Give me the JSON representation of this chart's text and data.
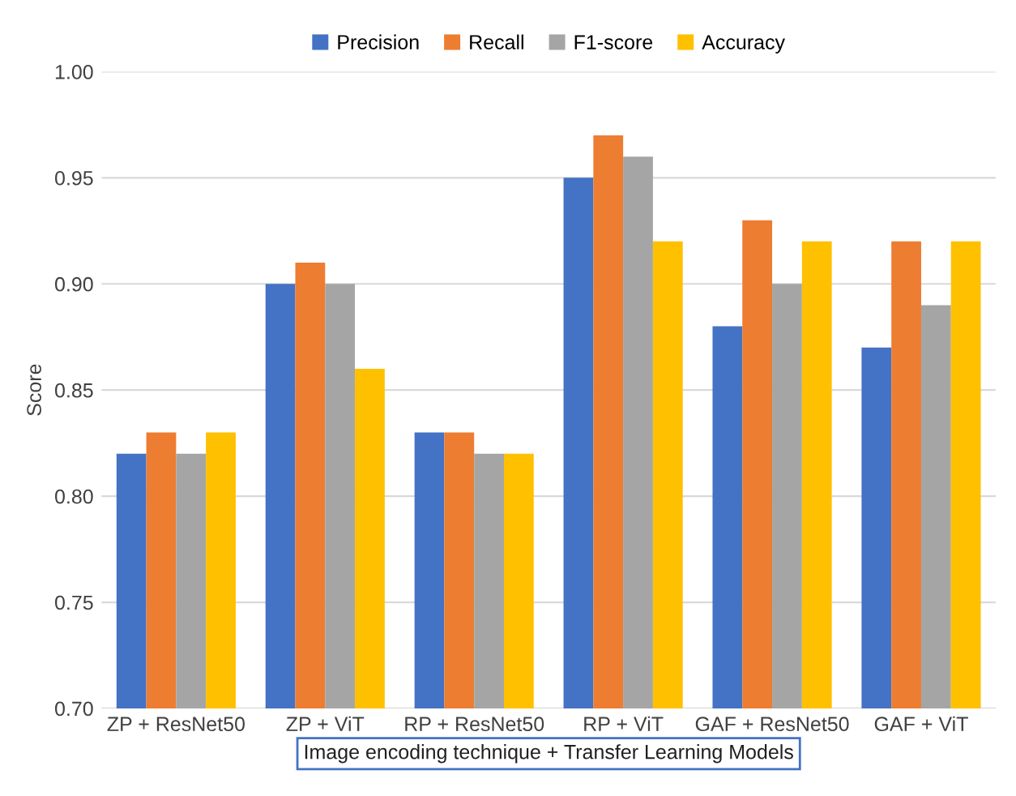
{
  "chart_data": {
    "type": "bar",
    "ylabel": "Score",
    "xlabel": "Image encoding technique + Transfer Learning Models",
    "categories": [
      "ZP + ResNet50",
      "ZP + ViT",
      "RP + ResNet50",
      "RP + ViT",
      "GAF + ResNet50",
      "GAF + ViT"
    ],
    "series": [
      {
        "name": "Precision",
        "color": "#4472c4",
        "values": [
          0.82,
          0.9,
          0.83,
          0.95,
          0.88,
          0.87
        ]
      },
      {
        "name": "Recall",
        "color": "#ed7d31",
        "values": [
          0.83,
          0.91,
          0.83,
          0.97,
          0.93,
          0.92
        ]
      },
      {
        "name": "F1-score",
        "color": "#a5a5a5",
        "values": [
          0.82,
          0.9,
          0.82,
          0.96,
          0.9,
          0.89
        ]
      },
      {
        "name": "Accuracy",
        "color": "#ffc000",
        "values": [
          0.83,
          0.86,
          0.82,
          0.92,
          0.92,
          0.92
        ]
      }
    ],
    "ylim": [
      0.7,
      1.0
    ],
    "yticks": [
      {
        "value": 0.7,
        "label": "0.70"
      },
      {
        "value": 0.75,
        "label": "0.75"
      },
      {
        "value": 0.8,
        "label": "0.80"
      },
      {
        "value": 0.85,
        "label": "0.85"
      },
      {
        "value": 0.9,
        "label": "0.90"
      },
      {
        "value": 0.95,
        "label": "0.95"
      },
      {
        "value": 1.0,
        "label": "1.00"
      }
    ],
    "grid": "y",
    "legend": "top"
  }
}
